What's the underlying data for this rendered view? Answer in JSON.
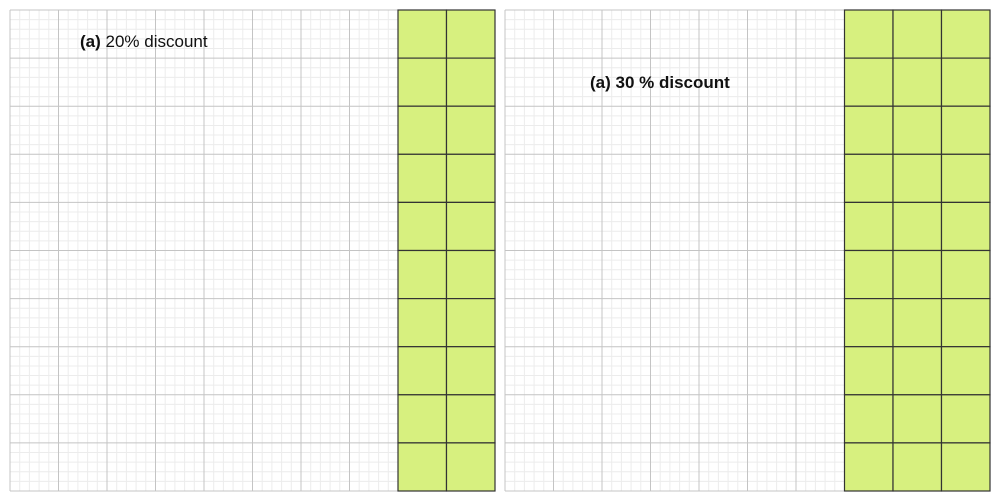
{
  "panels": [
    {
      "label_prefix": "(a)",
      "label_text": " 20% discount",
      "grid_size": 10,
      "shaded_columns": 2,
      "shaded_percent": 20
    },
    {
      "label_prefix": "(a)",
      "label_text": " 30 % discount",
      "grid_size": 10,
      "shaded_columns": 3,
      "shaded_percent": 30
    }
  ],
  "colors": {
    "shade": "#d7f07f",
    "major_line": "#c4c4c4",
    "minor_line": "#ececec",
    "shaded_line": "#333333"
  }
}
